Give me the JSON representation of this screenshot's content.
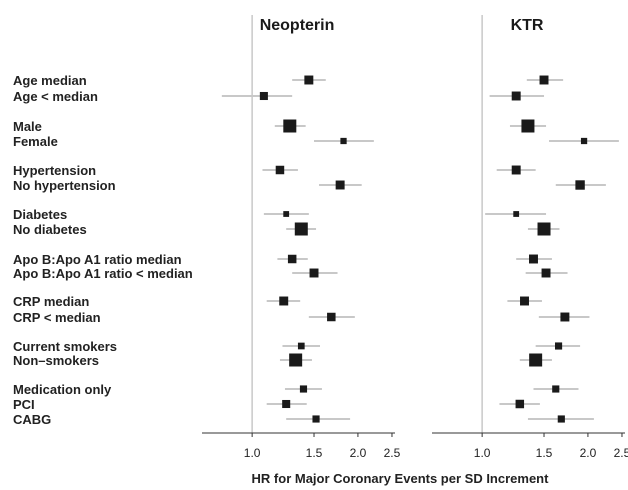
{
  "chart_data": {
    "type": "forest",
    "xlabel": "HR for Major Coronary Events per SD Increment",
    "x_scale": "log",
    "xlim": [
      0.72,
      2.55
    ],
    "ticks": [
      1.0,
      1.5,
      2.0,
      2.5
    ],
    "tick_labels": [
      "1.0",
      "1.5",
      "2.0",
      "2.5"
    ],
    "reference_line": 1.0,
    "colors": {
      "marker": "#1a1a1a",
      "ci": "#c8c8c8",
      "reference": "#cccccc",
      "axis": "#333333"
    },
    "rows": [
      {
        "label": "Age   median"
      },
      {
        "label": "Age < median"
      },
      {
        "label": "Male"
      },
      {
        "label": "Female"
      },
      {
        "label": "Hypertension"
      },
      {
        "label": "No hypertension"
      },
      {
        "label": "Diabetes"
      },
      {
        "label": "No diabetes"
      },
      {
        "label": "Apo B:Apo A1 ratio   median"
      },
      {
        "label": "Apo B:Apo A1 ratio < median"
      },
      {
        "label": "CRP   median"
      },
      {
        "label": "CRP < median"
      },
      {
        "label": "Current smokers"
      },
      {
        "label": "Non–smokers"
      },
      {
        "label": "Medication only"
      },
      {
        "label": "PCI"
      },
      {
        "label": "CABG"
      }
    ],
    "panels": [
      {
        "title": "Neopterin",
        "estimates": [
          {
            "hr": 1.45,
            "lo": 1.3,
            "hi": 1.62,
            "weight": 0.55
          },
          {
            "hr": 1.08,
            "lo": 0.82,
            "hi": 1.3,
            "weight": 0.45
          },
          {
            "hr": 1.28,
            "lo": 1.16,
            "hi": 1.42,
            "weight": 1.0
          },
          {
            "hr": 1.82,
            "lo": 1.5,
            "hi": 2.22,
            "weight": 0.25
          },
          {
            "hr": 1.2,
            "lo": 1.07,
            "hi": 1.35,
            "weight": 0.5
          },
          {
            "hr": 1.78,
            "lo": 1.55,
            "hi": 2.05,
            "weight": 0.55
          },
          {
            "hr": 1.25,
            "lo": 1.08,
            "hi": 1.45,
            "weight": 0.2
          },
          {
            "hr": 1.38,
            "lo": 1.25,
            "hi": 1.52,
            "weight": 1.0
          },
          {
            "hr": 1.3,
            "lo": 1.18,
            "hi": 1.44,
            "weight": 0.5
          },
          {
            "hr": 1.5,
            "lo": 1.3,
            "hi": 1.75,
            "weight": 0.55
          },
          {
            "hr": 1.23,
            "lo": 1.1,
            "hi": 1.37,
            "weight": 0.55
          },
          {
            "hr": 1.68,
            "lo": 1.45,
            "hi": 1.96,
            "weight": 0.5
          },
          {
            "hr": 1.38,
            "lo": 1.22,
            "hi": 1.56,
            "weight": 0.3
          },
          {
            "hr": 1.33,
            "lo": 1.2,
            "hi": 1.48,
            "weight": 1.0
          },
          {
            "hr": 1.4,
            "lo": 1.24,
            "hi": 1.58,
            "weight": 0.35
          },
          {
            "hr": 1.25,
            "lo": 1.1,
            "hi": 1.43,
            "weight": 0.45
          },
          {
            "hr": 1.52,
            "lo": 1.25,
            "hi": 1.9,
            "weight": 0.35
          }
        ]
      },
      {
        "title": "KTR",
        "estimates": [
          {
            "hr": 1.5,
            "lo": 1.34,
            "hi": 1.7,
            "weight": 0.55
          },
          {
            "hr": 1.25,
            "lo": 1.05,
            "hi": 1.5,
            "weight": 0.55
          },
          {
            "hr": 1.35,
            "lo": 1.2,
            "hi": 1.52,
            "weight": 1.0
          },
          {
            "hr": 1.95,
            "lo": 1.55,
            "hi": 2.45,
            "weight": 0.25
          },
          {
            "hr": 1.25,
            "lo": 1.1,
            "hi": 1.42,
            "weight": 0.55
          },
          {
            "hr": 1.9,
            "lo": 1.62,
            "hi": 2.25,
            "weight": 0.6
          },
          {
            "hr": 1.25,
            "lo": 1.02,
            "hi": 1.52,
            "weight": 0.2
          },
          {
            "hr": 1.5,
            "lo": 1.35,
            "hi": 1.66,
            "weight": 1.0
          },
          {
            "hr": 1.4,
            "lo": 1.25,
            "hi": 1.58,
            "weight": 0.55
          },
          {
            "hr": 1.52,
            "lo": 1.33,
            "hi": 1.75,
            "weight": 0.55
          },
          {
            "hr": 1.32,
            "lo": 1.18,
            "hi": 1.48,
            "weight": 0.55
          },
          {
            "hr": 1.72,
            "lo": 1.45,
            "hi": 2.02,
            "weight": 0.55
          },
          {
            "hr": 1.65,
            "lo": 1.42,
            "hi": 1.9,
            "weight": 0.35
          },
          {
            "hr": 1.42,
            "lo": 1.28,
            "hi": 1.58,
            "weight": 1.0
          },
          {
            "hr": 1.62,
            "lo": 1.4,
            "hi": 1.88,
            "weight": 0.35
          },
          {
            "hr": 1.28,
            "lo": 1.12,
            "hi": 1.46,
            "weight": 0.5
          },
          {
            "hr": 1.68,
            "lo": 1.35,
            "hi": 2.08,
            "weight": 0.35
          }
        ]
      }
    ]
  }
}
